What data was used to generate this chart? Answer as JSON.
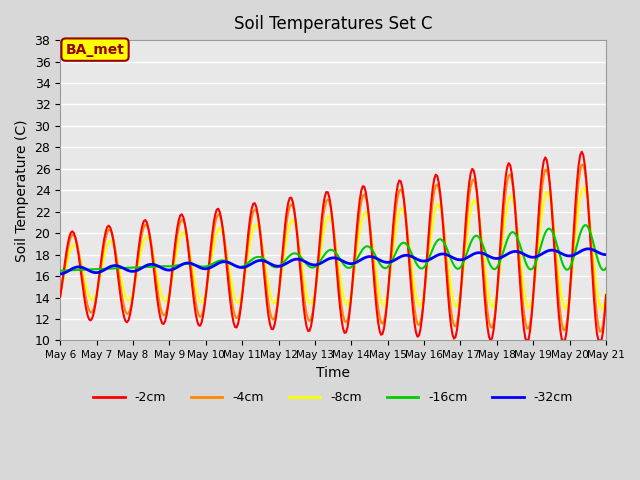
{
  "title": "Soil Temperatures Set C",
  "xlabel": "Time",
  "ylabel": "Soil Temperature (C)",
  "ylim": [
    10,
    38
  ],
  "yticks": [
    10,
    12,
    14,
    16,
    18,
    20,
    22,
    24,
    26,
    28,
    30,
    32,
    34,
    36,
    38
  ],
  "x_labels": [
    "May 6",
    "May 7",
    "May 8",
    "May 9",
    "May 10",
    "May 11",
    "May 12",
    "May 13",
    "May 14",
    "May 15",
    "May 16",
    "May 17",
    "May 18",
    "May 19",
    "May 20",
    "May 21"
  ],
  "legend_labels": [
    "-2cm",
    "-4cm",
    "-8cm",
    "-16cm",
    "-32cm"
  ],
  "legend_colors": [
    "#ff0000",
    "#ff8800",
    "#ffff00",
    "#00cc00",
    "#0000ff"
  ],
  "line_widths": [
    1.5,
    1.5,
    1.5,
    1.5,
    2.0
  ],
  "fig_bg_color": "#d8d8d8",
  "plot_bg_color": "#e8e8e8",
  "annotation_text": "BA_met",
  "annotation_bg": "#ffff00",
  "annotation_border": "#990000",
  "annotation_text_color": "#990000",
  "n_days": 15,
  "n_labels": 16
}
